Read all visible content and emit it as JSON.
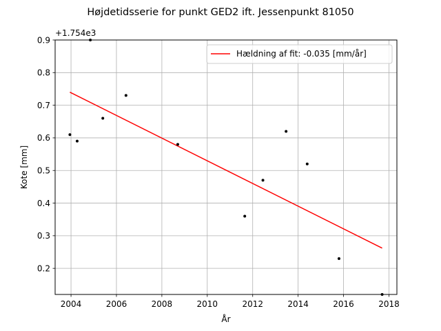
{
  "chart_data": {
    "type": "scatter",
    "title": "Højdetidsserie for punkt GED2 ift. Jessenpunkt 81050",
    "xlabel": "År",
    "ylabel": "Kote [mm]",
    "y_offset_text": "+1.754e3",
    "xlim": [
      2003.3,
      2018.35
    ],
    "ylim": [
      0.12,
      0.9
    ],
    "xticks": [
      2004,
      2006,
      2008,
      2010,
      2012,
      2014,
      2016,
      2018
    ],
    "yticks": [
      0.2,
      0.3,
      0.4,
      0.5,
      0.6,
      0.7,
      0.8,
      0.9
    ],
    "ytick_labels": [
      "0.2",
      "0.3",
      "0.4",
      "0.5",
      "0.6",
      "0.7",
      "0.8",
      "0.9"
    ],
    "grid": true,
    "legend_position": "top-right",
    "points": {
      "x": [
        2003.95,
        2004.27,
        2004.85,
        2005.4,
        2006.42,
        2008.7,
        2011.65,
        2012.45,
        2013.47,
        2014.4,
        2015.8,
        2017.7
      ],
      "y": [
        0.61,
        0.59,
        0.9,
        0.66,
        0.73,
        0.58,
        0.36,
        0.47,
        0.62,
        0.52,
        0.23,
        0.12
      ],
      "color": "#000000"
    },
    "fit": {
      "name": "Hældning af fit: -0.035 [mm/år]",
      "x": [
        2003.95,
        2017.7
      ],
      "y": [
        0.74,
        0.262
      ],
      "color": "#ff0000"
    }
  }
}
